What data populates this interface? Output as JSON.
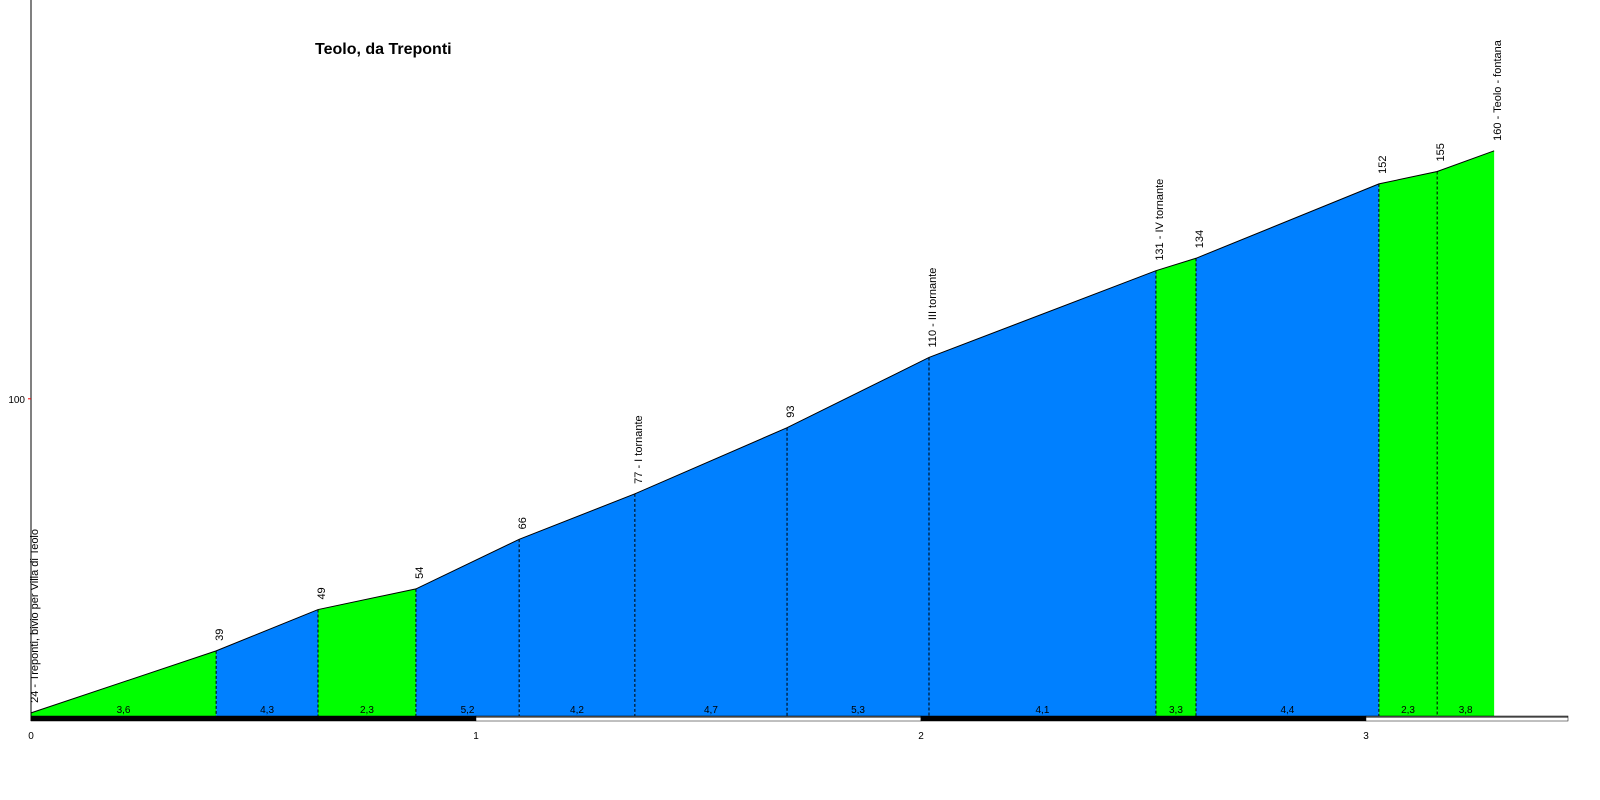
{
  "chart_data": {
    "type": "elevation-profile",
    "title": "Teolo, da Treponti",
    "x": [
      0,
      0.416,
      0.645,
      0.865,
      1.097,
      1.357,
      1.699,
      2.018,
      2.528,
      2.618,
      3.029,
      3.16,
      3.288
    ],
    "values": [
      24,
      39,
      49,
      54,
      66,
      77,
      93,
      110,
      131,
      134,
      152,
      155,
      160
    ],
    "value_labels": [
      "24 - Treponti, bivio per Villa di Teolo",
      "39",
      "49",
      "54",
      "66",
      "77 - I tornante",
      "93",
      "110 - III tornante",
      "131 - IV tornante",
      "134",
      "152",
      "155",
      "160 - Teolo - fontana"
    ],
    "grades": [
      3.6,
      4.3,
      2.3,
      5.2,
      4.2,
      4.7,
      5.3,
      4.1,
      3.3,
      4.4,
      2.3,
      3.8
    ],
    "grade_labels": [
      "3,6",
      "4,3",
      "2,3",
      "5,2",
      "4,2",
      "4,7",
      "5,3",
      "4,1",
      "3,3",
      "4,4",
      "2,3",
      "3,8"
    ],
    "segment_colors": [
      "#00ff00",
      "#0080ff",
      "#00ff00",
      "#0080ff",
      "#0080ff",
      "#0080ff",
      "#0080ff",
      "#0080ff",
      "#00ff00",
      "#0080ff",
      "#00ff00",
      "#00ff00"
    ],
    "xlim": [
      0,
      3.454
    ],
    "ylim": [
      23,
      196.5
    ],
    "xticks": [
      0,
      1,
      2,
      3
    ],
    "yticks": [
      100
    ]
  }
}
